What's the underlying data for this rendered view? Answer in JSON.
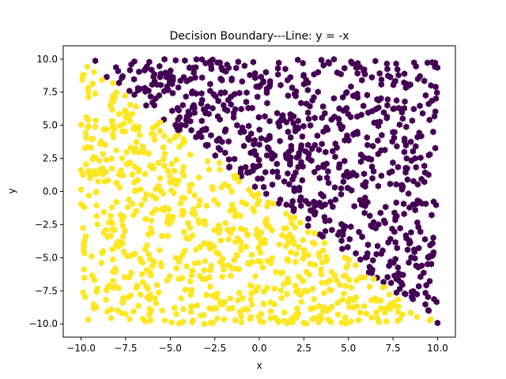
{
  "chart_data": {
    "type": "scatter",
    "title": "Decision Boundary---Line: y = -x",
    "xlabel": "x",
    "ylabel": "y",
    "xlim": [
      -11.0,
      11.0
    ],
    "ylim": [
      -11.0,
      11.0
    ],
    "x_ticks": [
      -10.0,
      -7.5,
      -5.0,
      -2.5,
      0.0,
      2.5,
      5.0,
      7.5,
      10.0
    ],
    "y_ticks": [
      -10.0,
      -7.5,
      -5.0,
      -2.5,
      0.0,
      2.5,
      5.0,
      7.5,
      10.0
    ],
    "x_tick_labels": [
      "−10.0",
      "−7.5",
      "−5.0",
      "−2.5",
      "0.0",
      "2.5",
      "5.0",
      "7.5",
      "10.0"
    ],
    "y_tick_labels": [
      "−10.0",
      "−7.5",
      "−5.0",
      "−2.5",
      "0.0",
      "2.5",
      "5.0",
      "7.5",
      "10.0"
    ],
    "grid": false,
    "legend": false,
    "marker": "hexagon",
    "boundary": "y = -x",
    "x_range": [
      -10.0,
      10.0
    ],
    "y_range": [
      -10.0,
      10.0
    ],
    "point_count": 1500,
    "series": [
      {
        "class": "y > -x",
        "color": "#440154"
      },
      {
        "class": "y < -x",
        "color": "#fde725"
      }
    ]
  }
}
